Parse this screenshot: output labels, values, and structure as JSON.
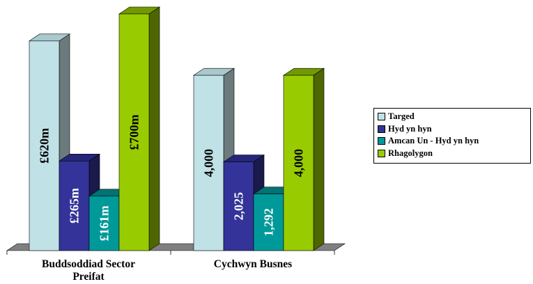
{
  "chart_data": {
    "type": "bar",
    "categories": [
      "Buddsoddiad Sector\nPreifat",
      "Cychwyn Busnes"
    ],
    "series": [
      {
        "name": "Targed",
        "color": "#c0e2e6",
        "side_color": "#6b7a7c",
        "top_color": "#a9c9cc",
        "values": [
          620,
          4000
        ],
        "labels": [
          "£620m",
          "4,000"
        ],
        "label_color": "#000000"
      },
      {
        "name": "Hyd yn hyn",
        "color": "#333399",
        "side_color": "#1a1a4d",
        "top_color": "#25257a",
        "values": [
          265,
          2025
        ],
        "labels": [
          "£265m",
          "2,025"
        ],
        "label_color": "#ffffff"
      },
      {
        "name": "Amcan Un - Hyd yn hyn",
        "color": "#009999",
        "side_color": "#004d4d",
        "top_color": "#007373",
        "values": [
          161,
          1292
        ],
        "labels": [
          "£161m",
          "1,292"
        ],
        "label_color": "#ffffff"
      },
      {
        "name": "Rhagolygon",
        "color": "#99cc00",
        "side_color": "#4d6600",
        "top_color": "#739900",
        "values": [
          700,
          4000
        ],
        "labels": [
          "£700m",
          "4,000"
        ],
        "label_color": "#000000"
      }
    ],
    "group_max": [
      700,
      5400
    ],
    "units": [
      "£m",
      ""
    ],
    "legend_position": "right",
    "grid": false,
    "three_d": true
  }
}
